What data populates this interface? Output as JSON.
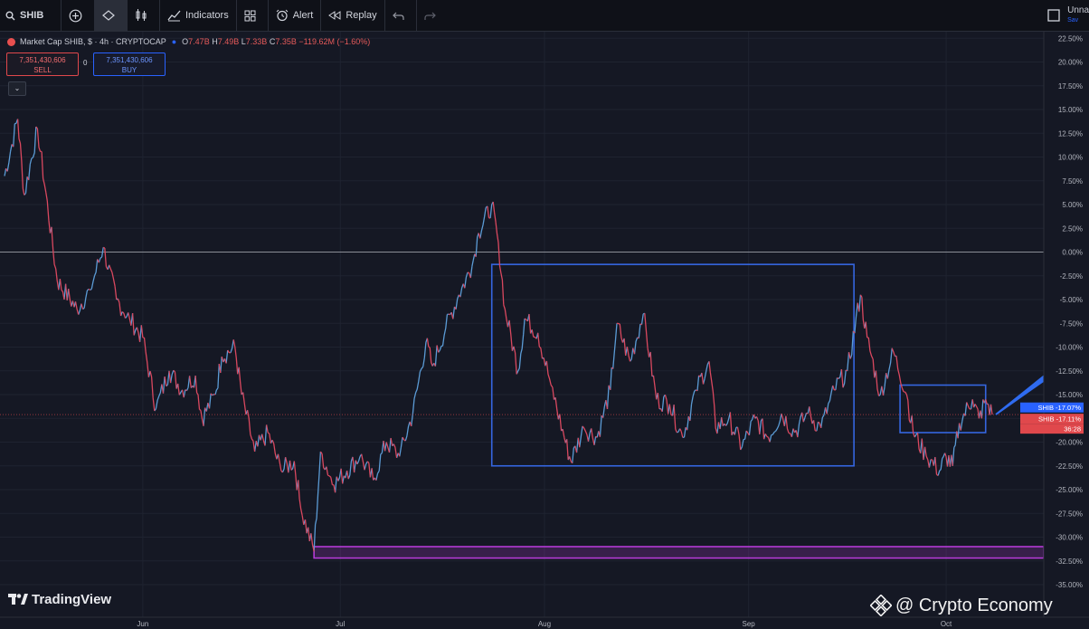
{
  "toolbar": {
    "symbol": "SHIB",
    "indicators_label": "Indicators",
    "alert_label": "Alert",
    "replay_label": "Replay",
    "unnamed_label": "Unna",
    "save_label": "Sav"
  },
  "legend": {
    "title": "Market Cap SHIB, $ · 4h · CRYPTOCAP",
    "open": "7.47B",
    "high": "7.49B",
    "low": "7.33B",
    "close": "7.35B",
    "change": "−119.62M (−1.60%)"
  },
  "trade": {
    "sell_value": "7,351,430,606",
    "sell_label": "SELL",
    "mid_value": "0",
    "buy_value": "7,351,430,606",
    "buy_label": "BUY"
  },
  "branding": {
    "tradingview": "TradingView",
    "watermark": "@ Crypto Economy"
  },
  "colors": {
    "background": "#151824",
    "price_up": "#5b9bd5",
    "price_down": "#d9485f",
    "channel": "#3566e0",
    "support_zone": "#b43ad6",
    "arrow": "#2f6bf0"
  },
  "chart_data": {
    "type": "line",
    "series": [
      {
        "name": "SHIB",
        "points": [
          [
            "May 11",
            8.0
          ],
          [
            "May 13",
            14.0
          ],
          [
            "May 14",
            6.0
          ],
          [
            "May 16",
            13.0
          ],
          [
            "May 19",
            -3.0
          ],
          [
            "May 22",
            -6.0
          ],
          [
            "May 24",
            -4.0
          ],
          [
            "May 26",
            0.5
          ],
          [
            "May 28",
            -5.0
          ],
          [
            "May 30",
            -7.0
          ],
          [
            "Jun 01",
            -9.0
          ],
          [
            "Jun 03",
            -16.5
          ],
          [
            "Jun 05",
            -12.5
          ],
          [
            "Jun 07",
            -14.5
          ],
          [
            "Jun 09",
            -13.0
          ],
          [
            "Jun 10",
            -17.5
          ],
          [
            "Jun 12",
            -15.0
          ],
          [
            "Jun 13",
            -11.0
          ],
          [
            "Jun 15",
            -10.0
          ],
          [
            "Jun 16",
            -15.0
          ],
          [
            "Jun 18",
            -21.0
          ],
          [
            "Jun 20",
            -19.0
          ],
          [
            "Jun 22",
            -23.0
          ],
          [
            "Jun 24",
            -22.0
          ],
          [
            "Jun 25",
            -27.0
          ],
          [
            "Jun 27",
            -31.5
          ],
          [
            "Jun 28",
            -21.0
          ],
          [
            "Jun 30",
            -24.5
          ],
          [
            "Jul 02",
            -23.0
          ],
          [
            "Jul 04",
            -21.5
          ],
          [
            "Jul 06",
            -24.0
          ],
          [
            "Jul 08",
            -20.0
          ],
          [
            "Jul 10",
            -21.5
          ],
          [
            "Jul 12",
            -17.0
          ],
          [
            "Jul 14",
            -9.5
          ],
          [
            "Jul 15",
            -12.0
          ],
          [
            "Jul 17",
            -8.0
          ],
          [
            "Jul 19",
            -4.5
          ],
          [
            "Jul 21",
            -1.5
          ],
          [
            "Jul 22",
            2.0
          ],
          [
            "Jul 24",
            5.0
          ],
          [
            "Jul 25",
            1.0
          ],
          [
            "Jul 26",
            -6.0
          ],
          [
            "Jul 28",
            -12.5
          ],
          [
            "Jul 29",
            -7.0
          ],
          [
            "Jul 31",
            -8.5
          ],
          [
            "Aug 02",
            -14.0
          ],
          [
            "Aug 04",
            -19.5
          ],
          [
            "Aug 05",
            -22.0
          ],
          [
            "Aug 07",
            -18.5
          ],
          [
            "Aug 09",
            -19.5
          ],
          [
            "Aug 11",
            -14.5
          ],
          [
            "Aug 12",
            -7.5
          ],
          [
            "Aug 14",
            -11.5
          ],
          [
            "Aug 16",
            -6.5
          ],
          [
            "Aug 18",
            -15.5
          ],
          [
            "Aug 20",
            -16.0
          ],
          [
            "Aug 22",
            -19.5
          ],
          [
            "Aug 24",
            -14.5
          ],
          [
            "Aug 26",
            -11.5
          ],
          [
            "Aug 27",
            -18.5
          ],
          [
            "Aug 29",
            -17.5
          ],
          [
            "Aug 31",
            -20.5
          ],
          [
            "Sep 02",
            -17.5
          ],
          [
            "Sep 04",
            -19.5
          ],
          [
            "Sep 06",
            -17.0
          ],
          [
            "Sep 08",
            -19.0
          ],
          [
            "Sep 10",
            -17.0
          ],
          [
            "Sep 12",
            -18.5
          ],
          [
            "Sep 14",
            -14.5
          ],
          [
            "Sep 16",
            -12.5
          ],
          [
            "Sep 18",
            -4.5
          ],
          [
            "Sep 19",
            -9.0
          ],
          [
            "Sep 21",
            -15.0
          ],
          [
            "Sep 23",
            -10.5
          ],
          [
            "Sep 25",
            -15.0
          ],
          [
            "Sep 26",
            -19.0
          ],
          [
            "Sep 28",
            -21.5
          ],
          [
            "Sep 30",
            -23.0
          ],
          [
            "Oct 01",
            -21.5
          ],
          [
            "Oct 02",
            -22.5
          ],
          [
            "Oct 03",
            -18.0
          ],
          [
            "Oct 05",
            -15.5
          ],
          [
            "Oct 06",
            -17.5
          ],
          [
            "Oct 07",
            -15.5
          ],
          [
            "Oct 08",
            -17.1
          ]
        ]
      }
    ],
    "reference_line": 0.0,
    "shapes": [
      {
        "kind": "rectangle",
        "x_from": "Jul 24",
        "x_to": "Sep 17",
        "y_from": -22.5,
        "y_to": -1.3,
        "color": "#3566e0"
      },
      {
        "kind": "rectangle",
        "x_from": "Sep 24",
        "x_to": "Oct 07",
        "y_from": -19.0,
        "y_to": -14.0,
        "color": "#3566e0"
      },
      {
        "kind": "zone",
        "x_from": "Jun 27",
        "x_to": "Oct 31",
        "y_from": -32.2,
        "y_to": -31.0,
        "color": "#b43ad6"
      },
      {
        "kind": "arrow",
        "x_from": "Oct 08",
        "x_to": "Oct 17",
        "y_from": -17.1,
        "y_to": -11.5,
        "color": "#2f6bf0"
      }
    ],
    "x_ticks": [
      "Jun",
      "Jul",
      "Aug",
      "Sep",
      "Oct"
    ],
    "y_ticks": [
      "22.50%",
      "20.00%",
      "17.50%",
      "15.00%",
      "12.50%",
      "10.00%",
      "7.50%",
      "5.00%",
      "2.50%",
      "0.00%",
      "-2.50%",
      "-5.00%",
      "-7.50%",
      "-10.00%",
      "-12.50%",
      "-15.00%",
      "-17.50%",
      "-20.00%",
      "-22.50%",
      "-25.00%",
      "-27.50%",
      "-30.00%",
      "-32.50%",
      "-35.00%"
    ],
    "ylim": [
      -35.5,
      23.5
    ],
    "grid": true,
    "price_labels": [
      {
        "text": "SHIB  -17.07%",
        "color": "#2962ff"
      },
      {
        "text": "SHIB  -17.11%",
        "color": "#e0484c"
      },
      {
        "text": "36:28",
        "color": "#e0484c"
      }
    ]
  }
}
